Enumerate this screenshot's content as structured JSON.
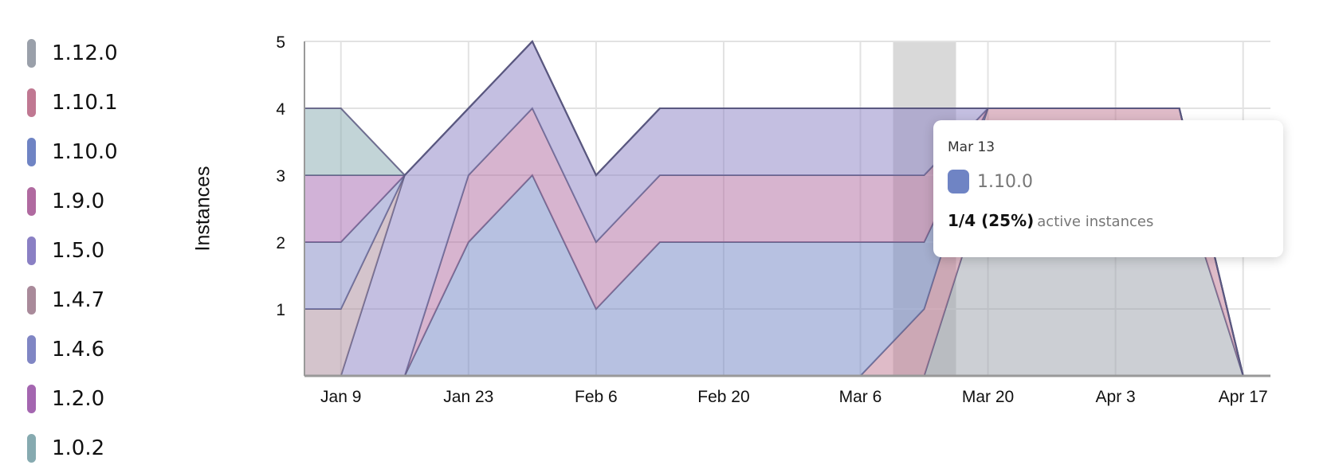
{
  "chart_data": {
    "type": "area",
    "stacked": true,
    "title": "",
    "xlabel": "",
    "ylabel": "Instances",
    "ylim": [
      0,
      5
    ],
    "xlim": [
      "Jan 5",
      "Apr 20"
    ],
    "yticks": [
      "1",
      "2",
      "3",
      "4",
      "5"
    ],
    "xticks": [
      "Jan 9",
      "Jan 23",
      "Feb 6",
      "Feb 20",
      "Mar 6",
      "Mar 20",
      "Apr 3",
      "Apr 17"
    ],
    "grid": true,
    "legend_placement": "left",
    "x": [
      "Jan 5",
      "Jan 9",
      "Jan 16",
      "Jan 23",
      "Jan 30",
      "Feb 6",
      "Feb 13",
      "Feb 20",
      "Feb 27",
      "Mar 6",
      "Mar 13",
      "Mar 20",
      "Mar 27",
      "Apr 3",
      "Apr 10",
      "Apr 17",
      "Apr 20"
    ],
    "series": [
      {
        "name": "1.12.0",
        "color": "#9aa0aa",
        "values": [
          0,
          0,
          0,
          0,
          0,
          0,
          0,
          0,
          0,
          0,
          0,
          3,
          3,
          3,
          3,
          0,
          0
        ]
      },
      {
        "name": "1.10.1",
        "color": "#c07892",
        "values": [
          0,
          0,
          0,
          0,
          0,
          0,
          0,
          0,
          0,
          0,
          1,
          1,
          1,
          1,
          1,
          0,
          0
        ]
      },
      {
        "name": "1.10.0",
        "color": "#6f84c4",
        "values": [
          0,
          0,
          0,
          2,
          3,
          1,
          2,
          2,
          2,
          2,
          1,
          0,
          0,
          0,
          0,
          0,
          0
        ]
      },
      {
        "name": "1.9.0",
        "color": "#b06aa0",
        "values": [
          0,
          0,
          0,
          1,
          1,
          1,
          1,
          1,
          1,
          1,
          1,
          0,
          0,
          0,
          0,
          0,
          0
        ]
      },
      {
        "name": "1.5.0",
        "color": "#8a80c4",
        "values": [
          0,
          0,
          3,
          1,
          1,
          1,
          1,
          1,
          1,
          1,
          1,
          0,
          0,
          0,
          0,
          0,
          0
        ]
      },
      {
        "name": "1.4.7",
        "color": "#a98a9a",
        "values": [
          1,
          1,
          0,
          0,
          0,
          0,
          0,
          0,
          0,
          0,
          0,
          0,
          0,
          0,
          0,
          0,
          0
        ]
      },
      {
        "name": "1.4.6",
        "color": "#8086c4",
        "values": [
          1,
          1,
          0,
          0,
          0,
          0,
          0,
          0,
          0,
          0,
          0,
          0,
          0,
          0,
          0,
          0,
          0
        ]
      },
      {
        "name": "1.2.0",
        "color": "#a466b0",
        "values": [
          1,
          1,
          0,
          0,
          0,
          0,
          0,
          0,
          0,
          0,
          0,
          0,
          0,
          0,
          0,
          0,
          0
        ]
      },
      {
        "name": "1.0.2",
        "color": "#86aab0",
        "values": [
          1,
          1,
          0,
          0,
          0,
          0,
          0,
          0,
          0,
          0,
          0,
          0,
          0,
          0,
          0,
          0,
          0
        ]
      }
    ],
    "hover": {
      "date": "Mar 13"
    }
  },
  "tooltip": {
    "date": "Mar 13",
    "series": "1.10.0",
    "color": "#6f84c4",
    "value": "1/4 (25%)",
    "suffix": "active instances"
  }
}
